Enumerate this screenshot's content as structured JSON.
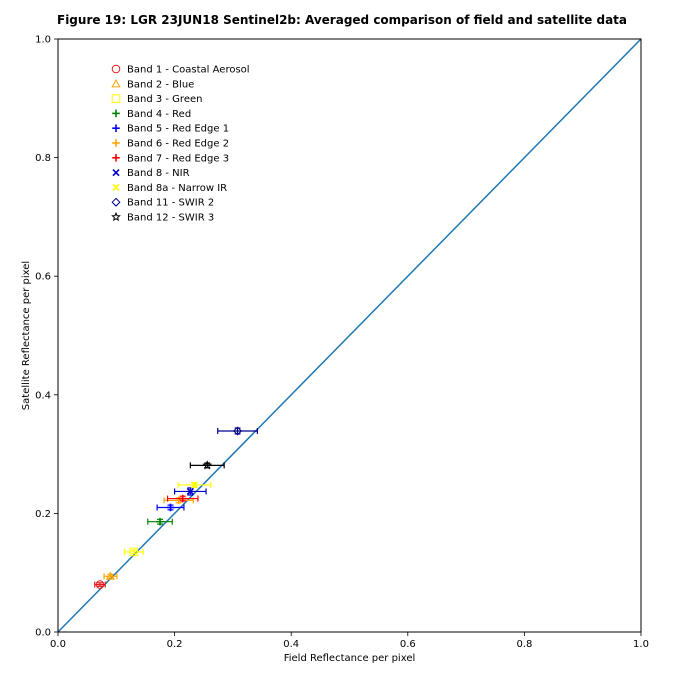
{
  "chart_data": {
    "type": "scatter",
    "title": "Figure 19: LGR 23JUN18  Sentinel2b: Averaged comparison of field and satellite data",
    "xlabel": "Field Reflectance per pixel",
    "ylabel": "Satellite Reflectance per pixel",
    "xlim": [
      0.0,
      1.0
    ],
    "ylim": [
      0.0,
      1.0
    ],
    "xticks": [
      "0.0",
      "0.2",
      "0.4",
      "0.6",
      "0.8",
      "1.0"
    ],
    "yticks": [
      "0.0",
      "0.2",
      "0.4",
      "0.6",
      "0.8",
      "1.0"
    ],
    "grid": false,
    "legend_position": "upper-left",
    "reference_line": {
      "x": [
        0.0,
        1.0
      ],
      "y": [
        0.0,
        1.0
      ],
      "color": "#1f77b4"
    },
    "series": [
      {
        "name": "Band 1 - Coastal Aerosol",
        "marker": "circle",
        "color": "#e41a1c",
        "x": 0.072,
        "y": 0.08,
        "xerr": 0.009,
        "yerr": 0.003
      },
      {
        "name": "Band 2 - Blue",
        "marker": "triangle",
        "color": "#ffa500",
        "x": 0.09,
        "y": 0.094,
        "xerr": 0.011,
        "yerr": 0.003
      },
      {
        "name": "Band 3 - Green",
        "marker": "square",
        "color": "#ffff00",
        "x": 0.13,
        "y": 0.135,
        "xerr": 0.016,
        "yerr": 0.003
      },
      {
        "name": "Band 4 - Red",
        "marker": "plus",
        "color": "#008000",
        "x": 0.175,
        "y": 0.186,
        "xerr": 0.021,
        "yerr": 0.004
      },
      {
        "name": "Band 5 - Red Edge 1",
        "marker": "plus",
        "color": "#0000ff",
        "x": 0.193,
        "y": 0.21,
        "xerr": 0.023,
        "yerr": 0.004
      },
      {
        "name": "Band 6 - Red Edge 2",
        "marker": "plus",
        "color": "#ffa500",
        "x": 0.207,
        "y": 0.222,
        "xerr": 0.025,
        "yerr": 0.004
      },
      {
        "name": "Band 7 - Red Edge 3",
        "marker": "plus",
        "color": "#ff0000",
        "x": 0.214,
        "y": 0.225,
        "xerr": 0.026,
        "yerr": 0.004
      },
      {
        "name": "Band 8 - NIR",
        "marker": "x",
        "color": "#0000cd",
        "x": 0.227,
        "y": 0.237,
        "xerr": 0.027,
        "yerr": 0.006
      },
      {
        "name": "Band 8a - Narrow IR",
        "marker": "x",
        "color": "#ffff00",
        "x": 0.234,
        "y": 0.248,
        "xerr": 0.028,
        "yerr": 0.004
      },
      {
        "name": "Band 11 - SWIR 2",
        "marker": "diamond",
        "color": "#00008b",
        "x": 0.308,
        "y": 0.339,
        "xerr": 0.034,
        "yerr": 0.005
      },
      {
        "name": "Band 12 - SWIR 3",
        "marker": "star",
        "color": "#000000",
        "x": 0.256,
        "y": 0.281,
        "xerr": 0.029,
        "yerr": 0.004
      }
    ]
  }
}
